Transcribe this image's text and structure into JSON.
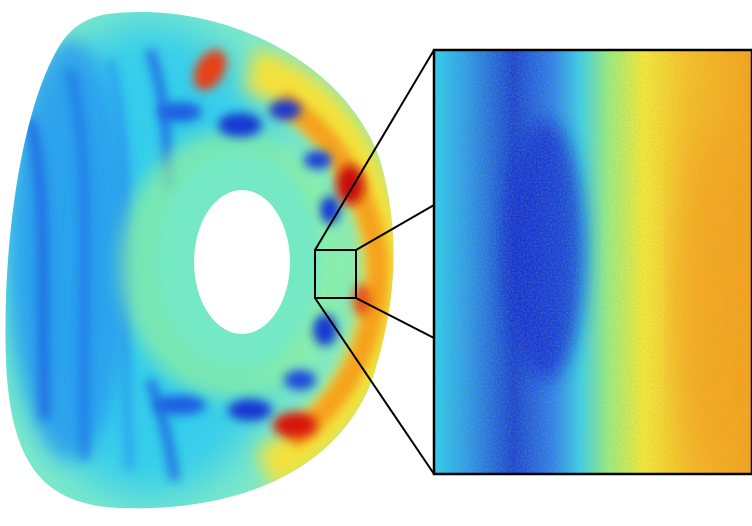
{
  "figure": {
    "colormap": "jet",
    "colors": {
      "background": "#ffffff",
      "outline": "#000000",
      "deep_blue": "#0a2ad8",
      "blue": "#1f7ff0",
      "cyan": "#27d7f2",
      "aqua_green": "#6ff0c2",
      "green": "#8ff088",
      "yellow": "#f6e83a",
      "orange": "#f6a21e",
      "red": "#e82010"
    }
  }
}
